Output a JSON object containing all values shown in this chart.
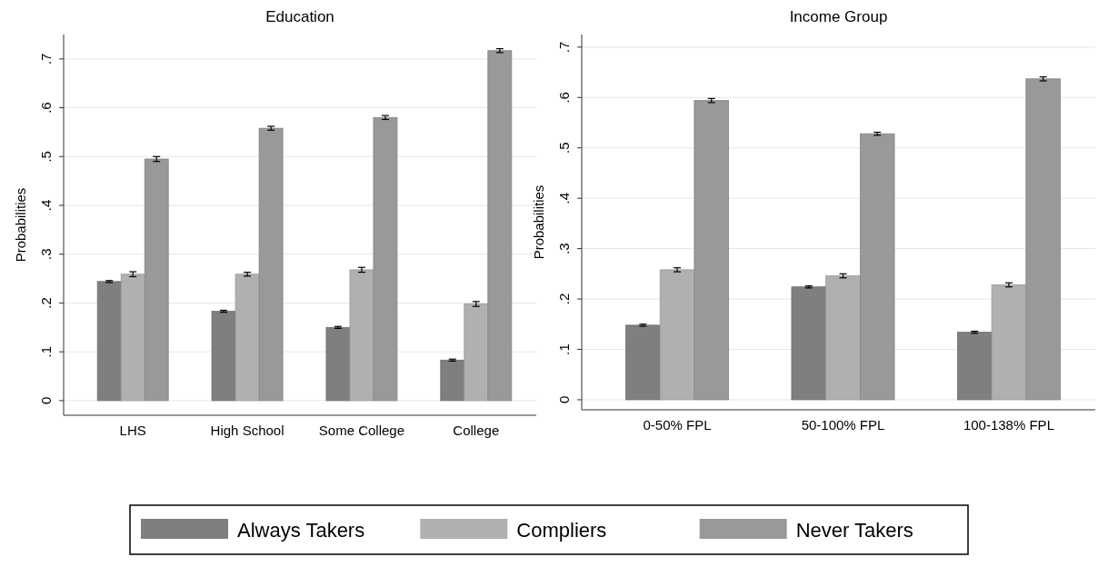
{
  "chart_data": [
    {
      "type": "bar",
      "title": "Education",
      "ylabel": "Probabilities",
      "categories": [
        "LHS",
        "High School",
        "Some College",
        "College"
      ],
      "ylim": [
        -0.03,
        0.75
      ],
      "yticks": [
        {
          "value": 0,
          "label": "0"
        },
        {
          "value": 0.1,
          "label": ".1"
        },
        {
          "value": 0.2,
          "label": ".2"
        },
        {
          "value": 0.3,
          "label": ".3"
        },
        {
          "value": 0.4,
          "label": ".4"
        },
        {
          "value": 0.5,
          "label": ".5"
        },
        {
          "value": 0.6,
          "label": ".6"
        },
        {
          "value": 0.7,
          "label": ".7"
        }
      ],
      "grid": "y",
      "legend": "bottom",
      "series": [
        {
          "name": "Always Takers",
          "color": "#7f7f7f",
          "values": [
            0.244,
            0.183,
            0.15,
            0.083
          ],
          "errors": [
            0.002,
            0.002,
            0.002,
            0.002
          ]
        },
        {
          "name": "Compliers",
          "color": "#b0b0b0",
          "values": [
            0.259,
            0.259,
            0.268,
            0.198
          ],
          "errors": [
            0.005,
            0.004,
            0.005,
            0.005
          ]
        },
        {
          "name": "Never Takers",
          "color": "#999999",
          "values": [
            0.495,
            0.558,
            0.58,
            0.717
          ],
          "errors": [
            0.005,
            0.004,
            0.004,
            0.004
          ]
        }
      ]
    },
    {
      "type": "bar",
      "title": "Income Group",
      "ylabel": "Probabilities",
      "categories": [
        "0-50% FPL",
        "50-100% FPL",
        "100-138% FPL"
      ],
      "ylim": [
        -0.02,
        0.725
      ],
      "yticks": [
        {
          "value": 0,
          "label": "0"
        },
        {
          "value": 0.1,
          "label": ".1"
        },
        {
          "value": 0.2,
          "label": ".2"
        },
        {
          "value": 0.3,
          "label": ".3"
        },
        {
          "value": 0.4,
          "label": ".4"
        },
        {
          "value": 0.5,
          "label": ".5"
        },
        {
          "value": 0.6,
          "label": ".6"
        },
        {
          "value": 0.7,
          "label": ".7"
        }
      ],
      "grid": "y",
      "series": [
        {
          "color": "#7f7f7f",
          "values": [
            0.148,
            0.224,
            0.134
          ],
          "errors": [
            0.002,
            0.002,
            0.002
          ]
        },
        {
          "color": "#b0b0b0",
          "values": [
            0.258,
            0.246,
            0.228
          ],
          "errors": [
            0.004,
            0.004,
            0.004
          ]
        },
        {
          "color": "#999999",
          "values": [
            0.594,
            0.528,
            0.637
          ],
          "errors": [
            0.004,
            0.003,
            0.004
          ]
        }
      ]
    }
  ]
}
